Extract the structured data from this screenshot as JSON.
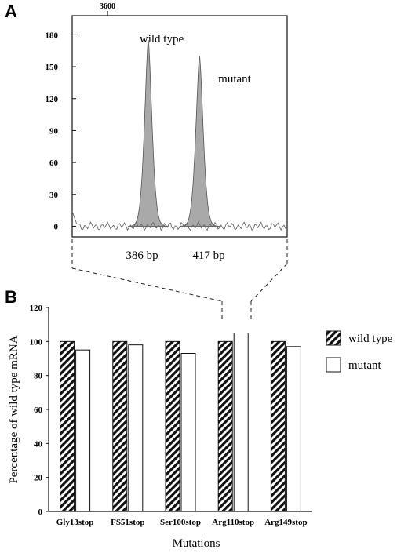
{
  "figure": {
    "panel_a_label": "A",
    "panel_b_label": "B"
  },
  "chart_data": [
    {
      "type": "area",
      "panel": "A",
      "top_tick_label": "3600",
      "y_ticks": [
        0,
        30,
        60,
        90,
        120,
        150,
        180
      ],
      "ylim": [
        -10,
        198
      ],
      "xlim": [
        340,
        470
      ],
      "peaks": [
        {
          "name": "wild type",
          "x": 386,
          "height": 175,
          "size_label": "386 bp"
        },
        {
          "name": "mutant",
          "x": 417,
          "height": 160,
          "size_label": "417 bp"
        }
      ],
      "baseline": 0,
      "grid": false
    },
    {
      "type": "bar",
      "panel": "B",
      "categories": [
        "Gly13stop",
        "FS51stop",
        "Ser100stop",
        "Arg110stop",
        "Arg149stop"
      ],
      "series": [
        {
          "name": "wild type",
          "values": [
            100,
            100,
            100,
            100,
            100
          ],
          "pattern": "diagonal-stripes"
        },
        {
          "name": "mutant",
          "values": [
            95,
            98,
            93,
            105,
            97
          ],
          "pattern": "white"
        }
      ],
      "xlabel": "Mutations",
      "ylabel": "Percentage of wild type mRNA",
      "ylim": [
        0,
        120
      ],
      "y_ticks": [
        0,
        20,
        40,
        60,
        80,
        100,
        120
      ],
      "legend_position": "right",
      "grid": false
    }
  ]
}
